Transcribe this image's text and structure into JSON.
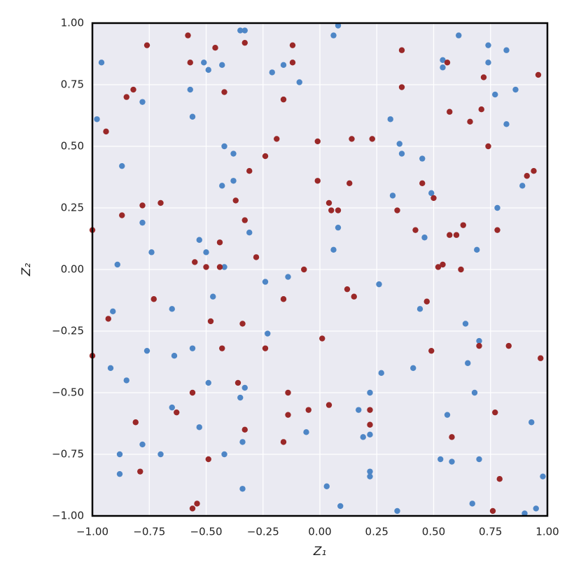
{
  "chart_data": {
    "type": "scatter",
    "xlabel": "Z₁",
    "ylabel": "Z₂",
    "xlim": [
      -1,
      1
    ],
    "ylim": [
      -1,
      1
    ],
    "xticks": [
      {
        "value": -1,
        "label": "−1.00"
      },
      {
        "value": -0.75,
        "label": "−0.75"
      },
      {
        "value": -0.5,
        "label": "−0.50"
      },
      {
        "value": -0.25,
        "label": "−0.25"
      },
      {
        "value": 0,
        "label": "0.00"
      },
      {
        "value": 0.25,
        "label": "0.25"
      },
      {
        "value": 0.5,
        "label": "0.50"
      },
      {
        "value": 0.75,
        "label": "0.75"
      },
      {
        "value": 1,
        "label": "1.00"
      }
    ],
    "yticks": [
      {
        "value": -1,
        "label": "−1.00"
      },
      {
        "value": -0.75,
        "label": "−0.75"
      },
      {
        "value": -0.5,
        "label": "−0.50"
      },
      {
        "value": -0.25,
        "label": "−0.25"
      },
      {
        "value": 0,
        "label": "0.00"
      },
      {
        "value": 0.25,
        "label": "0.25"
      },
      {
        "value": 0.5,
        "label": "0.50"
      },
      {
        "value": 0.75,
        "label": "0.75"
      },
      {
        "value": 1,
        "label": "1.00"
      }
    ],
    "grid": true,
    "series": [
      {
        "color": "#4e86c6",
        "x": [
          -0.96,
          -0.98,
          -0.87,
          -0.89,
          -0.91,
          -0.92,
          -0.85,
          -0.88,
          -0.88,
          -0.78,
          -0.78,
          -0.74,
          -0.76,
          -0.78,
          -0.7,
          -0.65,
          -0.64,
          -0.65,
          -0.57,
          -0.56,
          -0.56,
          -0.53,
          -0.5,
          -0.49,
          -0.51,
          -0.43,
          -0.42,
          -0.43,
          -0.47,
          -0.49,
          -0.53,
          -0.42,
          -0.38,
          -0.38,
          -0.35,
          -0.33,
          -0.31,
          -0.33,
          -0.34,
          -0.35,
          -0.34,
          -0.42,
          -0.24,
          -0.21,
          -0.16,
          -0.09,
          -0.14,
          -0.23,
          -0.06,
          0.06,
          0.08,
          0.08,
          0.06,
          0.03,
          0.09,
          0.26,
          0.17,
          0.22,
          0.22,
          0.19,
          0.22,
          0.22,
          0.27,
          0.31,
          0.32,
          0.35,
          0.36,
          0.46,
          0.49,
          0.45,
          0.44,
          0.41,
          0.34,
          0.64,
          0.65,
          0.7,
          0.68,
          0.67,
          0.56,
          0.58,
          0.53,
          0.7,
          0.54,
          0.54,
          0.61,
          0.69,
          0.78,
          0.74,
          0.82,
          0.74,
          0.77,
          0.86,
          0.82,
          0.89,
          0.93,
          0.95,
          0.98,
          0.9
        ],
        "values": [
          0.84,
          0.61,
          0.42,
          0.02,
          -0.17,
          -0.4,
          -0.45,
          -0.75,
          -0.83,
          0.68,
          0.19,
          0.07,
          -0.33,
          -0.71,
          -0.75,
          -0.16,
          -0.35,
          -0.56,
          0.73,
          0.62,
          -0.32,
          0.12,
          0.07,
          0.81,
          0.84,
          0.83,
          0.5,
          0.34,
          -0.11,
          -0.46,
          -0.64,
          0.01,
          0.36,
          0.47,
          0.97,
          0.97,
          0.15,
          -0.48,
          -0.7,
          -0.52,
          -0.89,
          -0.75,
          -0.05,
          0.8,
          0.83,
          0.76,
          -0.03,
          -0.26,
          -0.66,
          0.95,
          0.99,
          0.17,
          0.08,
          -0.88,
          -0.96,
          -0.06,
          -0.57,
          -0.5,
          -0.67,
          -0.68,
          -0.82,
          -0.84,
          -0.42,
          0.61,
          0.3,
          0.51,
          0.47,
          0.13,
          0.31,
          0.45,
          -0.16,
          -0.4,
          -0.98,
          -0.22,
          -0.38,
          -0.29,
          -0.5,
          -0.95,
          -0.59,
          -0.78,
          -0.77,
          -0.77,
          0.82,
          0.85,
          0.95,
          0.08,
          0.25,
          0.91,
          0.89,
          0.84,
          0.71,
          0.73,
          0.59,
          0.34,
          -0.62,
          -0.97,
          -0.84,
          -0.99
        ]
      },
      {
        "color": "#9a2828",
        "x": [
          -0.58,
          -0.57,
          -0.76,
          -0.46,
          -0.33,
          -0.12,
          -0.12,
          -0.16,
          -0.42,
          -0.82,
          -0.85,
          -0.94,
          -0.87,
          -0.78,
          -0.7,
          -1.0,
          -0.73,
          -0.93,
          -1.0,
          -0.81,
          -0.79,
          -0.63,
          -0.56,
          -0.55,
          -0.5,
          -0.48,
          -0.44,
          -0.44,
          -0.43,
          -0.28,
          -0.34,
          -0.31,
          -0.33,
          -0.37,
          -0.24,
          -0.24,
          -0.36,
          -0.33,
          -0.56,
          -0.54,
          -0.49,
          -0.16,
          -0.19,
          -0.14,
          -0.14,
          -0.16,
          -0.07,
          -0.05,
          -0.01,
          -0.01,
          0.01,
          0.04,
          0.04,
          0.05,
          0.08,
          0.12,
          0.15,
          0.13,
          0.14,
          0.23,
          0.22,
          0.22,
          0.36,
          0.36,
          0.34,
          0.42,
          0.45,
          0.5,
          0.47,
          0.49,
          0.56,
          0.57,
          0.57,
          0.6,
          0.52,
          0.54,
          0.62,
          0.63,
          0.58,
          0.66,
          0.71,
          0.72,
          0.74,
          0.7,
          0.78,
          0.77,
          0.79,
          0.76,
          0.83,
          0.91,
          0.94,
          0.96,
          0.97
        ],
        "values": [
          0.95,
          0.84,
          0.91,
          0.9,
          0.92,
          0.91,
          0.84,
          0.69,
          0.72,
          0.73,
          0.7,
          0.56,
          0.22,
          0.26,
          0.27,
          0.16,
          -0.12,
          -0.2,
          -0.35,
          -0.62,
          -0.82,
          -0.58,
          -0.5,
          0.03,
          0.01,
          -0.21,
          0.01,
          0.11,
          -0.32,
          0.05,
          -0.22,
          0.4,
          0.2,
          0.28,
          0.46,
          -0.32,
          -0.46,
          -0.65,
          -0.97,
          -0.95,
          -0.77,
          -0.12,
          0.53,
          -0.5,
          -0.59,
          -0.7,
          0.0,
          -0.57,
          0.52,
          0.36,
          -0.28,
          -0.55,
          0.27,
          0.24,
          0.24,
          -0.08,
          -0.11,
          0.35,
          0.53,
          0.53,
          -0.57,
          -0.63,
          0.74,
          0.89,
          0.24,
          0.16,
          0.35,
          0.29,
          -0.13,
          -0.33,
          0.84,
          0.64,
          0.14,
          0.14,
          0.01,
          0.02,
          0.0,
          0.18,
          -0.68,
          0.6,
          0.65,
          0.78,
          0.5,
          -0.31,
          0.16,
          -0.58,
          -0.85,
          -0.98,
          -0.31,
          0.38,
          0.4,
          0.79,
          -0.36
        ]
      }
    ]
  }
}
